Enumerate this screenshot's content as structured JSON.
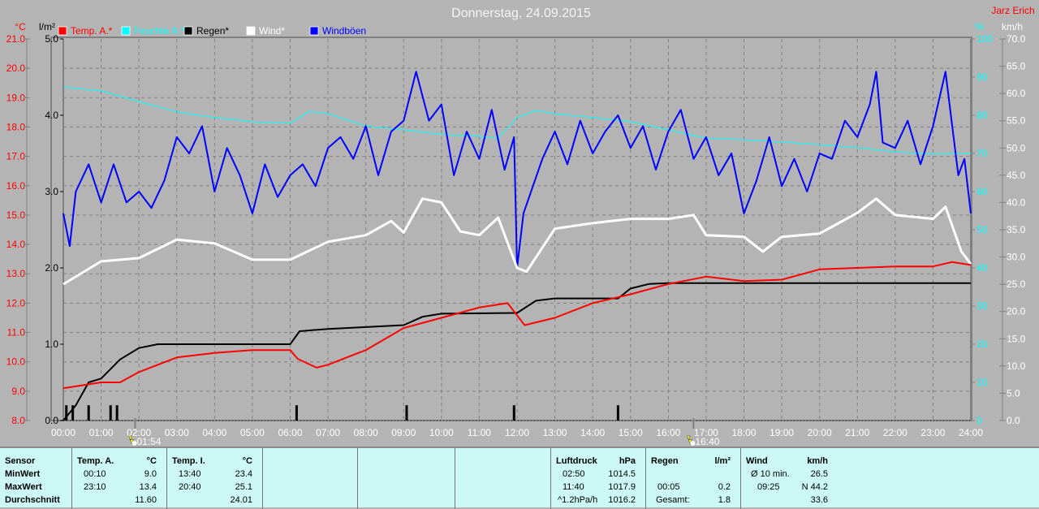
{
  "title": "Donnerstag, 24.09.2015",
  "author": "Jarz Erich",
  "colors": {
    "temp": "#ff0000",
    "humidity": "#00ffff",
    "rain": "#000000",
    "wind": "#ffffff",
    "gusts": "#0000ff",
    "background": "#b4b4b4",
    "table": "#ccf9f6"
  },
  "chart_data": {
    "type": "line",
    "title": "Donnerstag, 24.09.2015",
    "xlabel": "",
    "x_ticks": [
      "00:00",
      "01:00",
      "02:00",
      "03:00",
      "04:00",
      "05:00",
      "06:00",
      "07:00",
      "08:00",
      "09:00",
      "10:00",
      "11:00",
      "12:00",
      "13:00",
      "14:00",
      "15:00",
      "16:00",
      "17:00",
      "18:00",
      "19:00",
      "20:00",
      "21:00",
      "22:00",
      "23:00",
      "24:00"
    ],
    "xlim": [
      0,
      24
    ],
    "axes": {
      "temp": {
        "unit": "°C",
        "range": [
          8,
          21
        ],
        "ticks": [
          "8.0",
          "9.0",
          "10.0",
          "11.0",
          "12.0",
          "13.0",
          "14.0",
          "15.0",
          "16.0",
          "17.0",
          "18.0",
          "19.0",
          "20.0",
          "21.0"
        ]
      },
      "rain": {
        "unit": "l/m²",
        "range": [
          0,
          5
        ],
        "ticks": [
          "0.0",
          "1.0",
          "2.0",
          "3.0",
          "4.0",
          "5.0"
        ]
      },
      "humidity": {
        "unit": "%",
        "range": [
          0,
          100
        ],
        "ticks": [
          "0",
          "10",
          "20",
          "30",
          "40",
          "50",
          "60",
          "70",
          "80",
          "90",
          "100"
        ]
      },
      "wind": {
        "unit": "km/h",
        "range": [
          0,
          70
        ],
        "ticks": [
          "0.0",
          "5.0",
          "10.0",
          "15.0",
          "20.0",
          "25.0",
          "30.0",
          "35.0",
          "40.0",
          "45.0",
          "50.0",
          "55.0",
          "60.0",
          "65.0",
          "70.0"
        ]
      }
    },
    "legend": [
      "Temp. A.*",
      "Feuchte A.*",
      "Regen*",
      "Wind*",
      "Windböen"
    ],
    "legend_placement": "top-left",
    "grid": true,
    "sun_events": [
      {
        "hour": 1.9,
        "label": "01:54",
        "type": "sunrise"
      },
      {
        "hour": 16.667,
        "label": "16:40",
        "type": "sunset"
      }
    ],
    "series": [
      {
        "name": "Temp. A.*",
        "axis": "temp",
        "x": [
          0,
          1,
          1.5,
          2,
          3,
          4,
          5,
          6,
          6.2,
          6.7,
          7,
          8,
          9,
          10,
          11,
          11.75,
          12.2,
          13,
          14,
          15,
          16,
          17,
          18,
          19,
          20,
          21,
          22,
          23,
          23.5,
          24
        ],
        "y": [
          9.1,
          9.3,
          9.3,
          9.65,
          10.15,
          10.3,
          10.4,
          10.4,
          10.1,
          9.8,
          9.9,
          10.4,
          11.15,
          11.5,
          11.85,
          12.0,
          11.25,
          11.5,
          12.0,
          12.3,
          12.65,
          12.9,
          12.75,
          12.8,
          13.15,
          13.2,
          13.25,
          13.25,
          13.4,
          13.3
        ]
      },
      {
        "name": "Feuchte A.*",
        "axis": "humidity",
        "x": [
          0,
          1,
          2,
          3,
          4,
          5,
          6,
          6.5,
          7,
          8,
          9,
          10,
          11,
          11.5,
          12,
          12.5,
          13,
          14,
          15,
          16,
          17,
          18,
          19,
          20,
          21,
          22,
          23,
          24
        ],
        "y": [
          87.4,
          86.4,
          83.6,
          80.9,
          79.4,
          78.3,
          77.9,
          81,
          80.4,
          77.2,
          76.2,
          75,
          74.5,
          74,
          79.4,
          81.3,
          80.4,
          79.4,
          78.3,
          76.2,
          74,
          73.6,
          73,
          72.3,
          71.5,
          70.4,
          69.8,
          70
        ]
      },
      {
        "name": "Regen*",
        "axis": "rain",
        "x": [
          0,
          0.33,
          0.67,
          1,
          1.5,
          2,
          2.5,
          3,
          6,
          6.25,
          7,
          9,
          9.5,
          10,
          12,
          12.5,
          13,
          14.67,
          15,
          15.5,
          16,
          24
        ],
        "y": [
          0,
          0.2,
          0.5,
          0.55,
          0.8,
          0.95,
          1.0,
          1.0,
          1.0,
          1.17,
          1.2,
          1.25,
          1.36,
          1.4,
          1.41,
          1.57,
          1.6,
          1.6,
          1.73,
          1.79,
          1.8,
          1.8
        ]
      },
      {
        "name": "Regen bars",
        "axis": "rain",
        "type": "bar",
        "x": [
          0.08,
          0.25,
          0.67,
          1.25,
          1.42,
          6.17,
          9.08,
          11.92,
          14.67
        ],
        "y": [
          0.2,
          0.2,
          0.2,
          0.2,
          0.2,
          0.2,
          0.2,
          0.2,
          0.2
        ]
      },
      {
        "name": "Wind*",
        "axis": "wind",
        "x": [
          0,
          1,
          2,
          3,
          4,
          5,
          6,
          7,
          8,
          8.67,
          9,
          9.5,
          10,
          10.5,
          11,
          11.5,
          12,
          12.25,
          13,
          14,
          15,
          16,
          16.67,
          17,
          18,
          18.5,
          19,
          20,
          21,
          21.5,
          22,
          23,
          23.33,
          23.75,
          24
        ],
        "y": [
          25,
          29.2,
          29.8,
          33.2,
          32.5,
          29.5,
          29.5,
          32.8,
          34,
          36.6,
          34.5,
          40.7,
          40,
          34.7,
          34,
          37.2,
          28,
          27.3,
          35.2,
          36.2,
          37,
          37,
          37.7,
          34,
          33.7,
          31,
          33.7,
          34.3,
          38.1,
          40.7,
          37.7,
          37,
          39.2,
          31,
          28.7
        ]
      },
      {
        "name": "Windböen",
        "axis": "wind",
        "x": [
          0,
          0.17,
          0.33,
          0.67,
          1,
          1.33,
          1.67,
          2,
          2.33,
          2.67,
          3,
          3.33,
          3.67,
          4,
          4.33,
          4.67,
          5,
          5.33,
          5.67,
          6,
          6.33,
          6.67,
          7,
          7.33,
          7.67,
          8,
          8.33,
          8.67,
          9,
          9.33,
          9.67,
          10,
          10.33,
          10.67,
          11,
          11.33,
          11.67,
          11.92,
          12,
          12.17,
          12.67,
          13,
          13.33,
          13.67,
          14,
          14.33,
          14.67,
          15,
          15.33,
          15.67,
          16,
          16.33,
          16.67,
          17,
          17.33,
          17.67,
          18,
          18.33,
          18.67,
          19,
          19.33,
          19.67,
          20,
          20.33,
          20.67,
          21,
          21.33,
          21.5,
          21.67,
          22,
          22.33,
          22.67,
          23,
          23.33,
          23.67,
          23.83,
          24
        ],
        "y": [
          38,
          32,
          42,
          47,
          40,
          47,
          40,
          42,
          39,
          44,
          52,
          49,
          54,
          42,
          50,
          45,
          38,
          47,
          41,
          45,
          47,
          43,
          50,
          52,
          48,
          54,
          45,
          53,
          55,
          64,
          55,
          58,
          45,
          53,
          48,
          57,
          46,
          52,
          28,
          38,
          48,
          53,
          47,
          55,
          49,
          53,
          56,
          50,
          54,
          46,
          53,
          57,
          48,
          52,
          45,
          49,
          38,
          44,
          52,
          43,
          48,
          42,
          49,
          48,
          55,
          52,
          58,
          64,
          51,
          50,
          55,
          47,
          54,
          64,
          45,
          48,
          38
        ]
      }
    ]
  },
  "stats": {
    "sensor": {
      "header": "Sensor",
      "rows": [
        "MinWert",
        "MaxWert",
        "Durchschnitt"
      ]
    },
    "temp_a": {
      "header": "Temp. A.",
      "unit": "°C",
      "min_time": "00:10",
      "min": "9.0",
      "max_time": "23:10",
      "max": "13.4",
      "avg": "11.60"
    },
    "temp_i": {
      "header": "Temp. I.",
      "unit": "°C",
      "min_time": "13:40",
      "min": "23.4",
      "max_time": "20:40",
      "max": "25.1",
      "avg": "24.01"
    },
    "pressure": {
      "header": "Luftdruck",
      "unit": "hPa",
      "min_time": "02:50",
      "min": "1014.5",
      "max_time": "11:40",
      "max": "1017.9",
      "trend": "^1.2hPa/h",
      "avg": "1016.2"
    },
    "rain": {
      "header": "Regen",
      "unit": "l/m²",
      "max_time": "00:05",
      "max": "0.2",
      "total_label": "Gesamt:",
      "total": "1.8"
    },
    "wind": {
      "header": "Wind",
      "unit": "km/h",
      "avg10_label": "Ø 10 min.",
      "avg10": "26.5",
      "max_time": "09:25",
      "max": "N 44.2",
      "avg": "33.6"
    }
  }
}
